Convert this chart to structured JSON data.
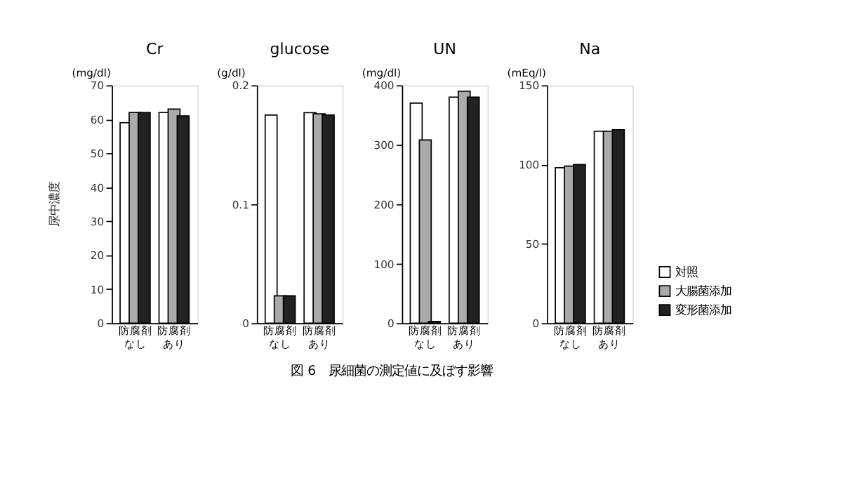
{
  "chart_data": [
    {
      "type": "bar",
      "title": "Cr",
      "ylabel": "(mg/dl)",
      "categories": [
        "防腐剤なし",
        "防腐剤あり"
      ],
      "ylim": [
        0,
        70
      ],
      "yticks": [
        0,
        10,
        20,
        30,
        40,
        50,
        60,
        70
      ],
      "grid": false,
      "legend": false,
      "annotations": [
        "尿中濃度",
        "図 6　尿細菌の測定値に及ぼす影響"
      ],
      "series": [
        {
          "color": "#ffffff",
          "values": [
            59,
            62
          ]
        },
        {
          "color": "#aaaaaa",
          "values": [
            62,
            63
          ]
        },
        {
          "color": "#222222",
          "values": [
            62,
            61
          ]
        }
      ]
    },
    {
      "type": "bar",
      "title": "glucose",
      "ylabel": "(g/dl)",
      "categories": [
        "防腐剤なし",
        "防腐剤あり"
      ],
      "ylim": [
        0,
        0.2
      ],
      "yticks": [
        {
          "value": 0,
          "label": "0"
        },
        {
          "value": 0.1,
          "label": "0.1"
        },
        {
          "value": 0.2,
          "label": "0.2"
        }
      ],
      "grid": false,
      "legend": false,
      "series": [
        {
          "color": "#ffffff",
          "values": [
            0.175,
            0.177
          ]
        },
        {
          "color": "#aaaaaa",
          "values": [
            0.023,
            0.176
          ]
        },
        {
          "color": "#222222",
          "values": [
            0.023,
            0.175
          ]
        }
      ]
    },
    {
      "type": "bar",
      "title": "UN",
      "ylabel": "(mg/dl)",
      "categories": [
        "防腐剤なし",
        "防腐剤あり"
      ],
      "ylim": [
        0,
        400
      ],
      "yticks": [
        0,
        100,
        200,
        300,
        400
      ],
      "grid": false,
      "legend": false,
      "series": [
        {
          "color": "#ffffff",
          "values": [
            370,
            380
          ]
        },
        {
          "color": "#aaaaaa",
          "values": [
            308,
            390
          ]
        },
        {
          "color": "#222222",
          "values": [
            3,
            380
          ]
        }
      ]
    },
    {
      "type": "bar",
      "title": "Na",
      "ylabel": "(mEq/l)",
      "categories": [
        "防腐剤なし",
        "防腐剤あり"
      ],
      "ylim": [
        0,
        150
      ],
      "yticks": [
        0,
        50,
        100,
        150
      ],
      "grid": false,
      "legend": "bottom right",
      "series": [
        {
          "name": "対照",
          "color": "#ffffff",
          "values": [
            98,
            121
          ]
        },
        {
          "name": "大腸菌添加",
          "color": "#aaaaaa",
          "values": [
            99,
            121
          ]
        },
        {
          "name": "変形菌添加",
          "color": "#222222",
          "values": [
            100,
            122
          ]
        }
      ]
    }
  ]
}
